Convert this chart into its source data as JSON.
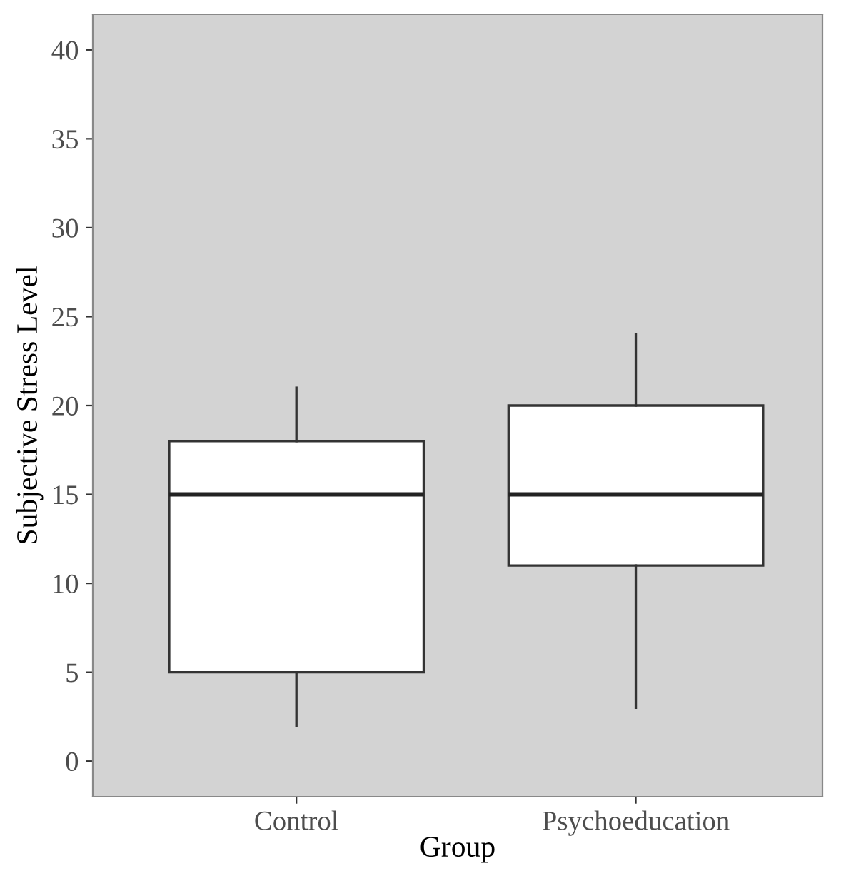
{
  "chart_data": {
    "type": "box",
    "xlabel": "Group",
    "ylabel": "Subjective Stress Level",
    "categories": [
      "Control",
      "Psychoeducation"
    ],
    "boxes": [
      {
        "low": 2,
        "q1": 5,
        "median": 15,
        "q3": 18,
        "high": 21
      },
      {
        "low": 3,
        "q1": 11,
        "median": 15,
        "q3": 20,
        "high": 24
      }
    ],
    "ylim": [
      -2,
      42
    ],
    "yticks": [
      0,
      5,
      10,
      15,
      20,
      25,
      30,
      35,
      40
    ],
    "grid": false
  }
}
